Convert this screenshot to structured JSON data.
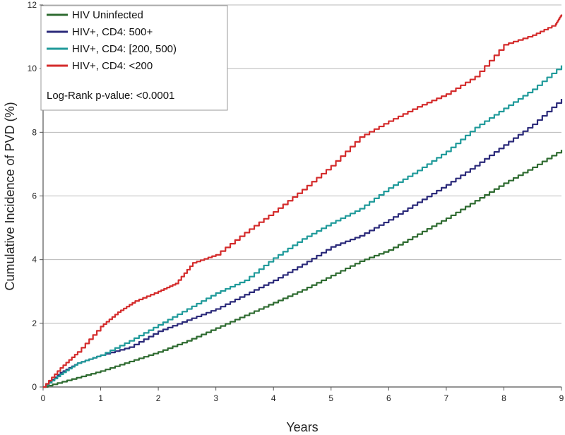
{
  "chart_data": {
    "type": "line",
    "title": "",
    "xlabel": "Years",
    "ylabel": "Cumulative Incidence of PVD (%)",
    "xlim": [
      0,
      9
    ],
    "ylim": [
      0,
      12
    ],
    "x_ticks": [
      0,
      1,
      2,
      3,
      4,
      5,
      6,
      7,
      8,
      9
    ],
    "y_ticks": [
      0,
      2,
      4,
      6,
      8,
      10,
      12
    ],
    "grid": "horizontal",
    "legend_position": "top-left",
    "annotation": "Log-Rank p-value: <0.0001",
    "series": [
      {
        "name": "HIV Uninfected",
        "color": "#2e6b30",
        "x": [
          0,
          0.5,
          1,
          1.5,
          2,
          2.5,
          3,
          3.5,
          4,
          4.5,
          5,
          5.5,
          6,
          6.5,
          7,
          7.5,
          8,
          8.5,
          9
        ],
        "y": [
          0,
          0.25,
          0.5,
          0.8,
          1.1,
          1.45,
          1.85,
          2.25,
          2.65,
          3.05,
          3.5,
          3.95,
          4.3,
          4.8,
          5.3,
          5.85,
          6.4,
          6.9,
          7.45
        ]
      },
      {
        "name": "HIV+, CD4: 500+",
        "color": "#2b2a7a",
        "x": [
          0,
          0.3,
          0.6,
          1,
          1.5,
          2,
          2.5,
          3,
          3.5,
          4,
          4.5,
          5,
          5.5,
          6,
          6.5,
          7,
          7.5,
          8,
          8.5,
          9
        ],
        "y": [
          0,
          0.45,
          0.75,
          1.0,
          1.25,
          1.75,
          2.1,
          2.45,
          2.9,
          3.35,
          3.85,
          4.4,
          4.75,
          5.25,
          5.8,
          6.35,
          6.95,
          7.6,
          8.25,
          9.05
        ]
      },
      {
        "name": "HIV+, CD4: [200, 500)",
        "color": "#1f9a9a",
        "x": [
          0,
          0.3,
          0.6,
          1,
          1.5,
          2,
          2.5,
          3,
          3.5,
          4,
          4.5,
          5,
          5.5,
          6,
          6.5,
          7,
          7.5,
          8,
          8.5,
          9
        ],
        "y": [
          0,
          0.4,
          0.75,
          1.0,
          1.45,
          1.95,
          2.45,
          2.95,
          3.35,
          4.05,
          4.65,
          5.15,
          5.6,
          6.25,
          6.8,
          7.4,
          8.15,
          8.75,
          9.35,
          10.1
        ]
      },
      {
        "name": "HIV+, CD4: <200",
        "color": "#d42b2b",
        "x": [
          0,
          0.3,
          0.6,
          1,
          1.3,
          1.6,
          2,
          2.3,
          2.6,
          3,
          3.5,
          4,
          4.5,
          5,
          5.5,
          6,
          6.5,
          7,
          7.5,
          8,
          8.5,
          8.9,
          9
        ],
        "y": [
          0,
          0.6,
          1.1,
          1.9,
          2.35,
          2.7,
          3.0,
          3.25,
          3.9,
          4.15,
          4.85,
          5.5,
          6.2,
          6.95,
          7.85,
          8.35,
          8.8,
          9.2,
          9.75,
          10.75,
          11.05,
          11.4,
          11.7
        ]
      }
    ]
  }
}
